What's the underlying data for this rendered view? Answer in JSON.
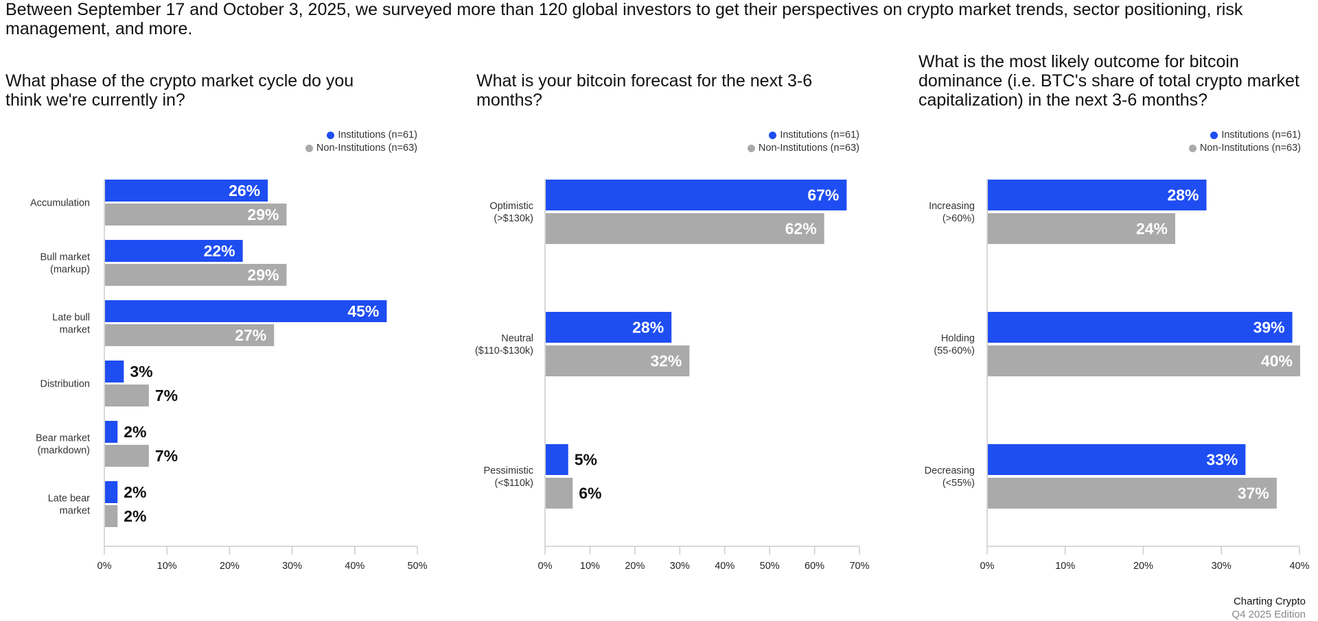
{
  "intro": "Between September 17 and October 3, 2025, we surveyed more than 120 global investors to get their perspectives on crypto market trends, sector positioning, risk management, and more.",
  "colors": {
    "institutions": "#1e4df2",
    "non_institutions": "#aaaaaa",
    "axis": "#cccccc"
  },
  "footer": {
    "title": "Charting Crypto",
    "edition": "Q4 2025 Edition"
  },
  "chart_data": [
    {
      "type": "bar",
      "orientation": "horizontal",
      "title": "What phase of the crypto market cycle do you think we're currently in?",
      "categories": [
        "Accumulation",
        "Bull market\n(markup)",
        "Late bull\nmarket",
        "Distribution",
        "Bear market\n(markdown)",
        "Late bear\nmarket"
      ],
      "series": [
        {
          "name": "Institutions (n=61)",
          "values": [
            26,
            22,
            45,
            3,
            2,
            2
          ]
        },
        {
          "name": "Non-Institutions (n=63)",
          "values": [
            29,
            29,
            27,
            7,
            7,
            2
          ]
        }
      ],
      "xlim": [
        0,
        50
      ],
      "xticks": [
        "0%",
        "10%",
        "20%",
        "30%",
        "40%",
        "50%"
      ],
      "legend": "top-right",
      "grid": false
    },
    {
      "type": "bar",
      "orientation": "horizontal",
      "title": "What is your bitcoin forecast for the next 3-6 months?",
      "categories": [
        "Optimistic\n(>$130k)",
        "Neutral\n($110-$130k)",
        "Pessimistic\n(<$110k)"
      ],
      "series": [
        {
          "name": "Institutions (n=61)",
          "values": [
            67,
            28,
            5
          ]
        },
        {
          "name": "Non-Institutions (n=63)",
          "values": [
            62,
            32,
            6
          ]
        }
      ],
      "xlim": [
        0,
        70
      ],
      "xticks": [
        "0%",
        "10%",
        "20%",
        "30%",
        "40%",
        "50%",
        "60%",
        "70%"
      ],
      "legend": "top-right",
      "grid": false
    },
    {
      "type": "bar",
      "orientation": "horizontal",
      "title": "What is the most likely outcome for bitcoin dominance (i.e. BTC's share of total crypto market capitalization) in the next 3-6 months?",
      "categories": [
        "Increasing\n(>60%)",
        "Holding\n(55-60%)",
        "Decreasing\n(<55%)"
      ],
      "series": [
        {
          "name": "Institutions (n=61)",
          "values": [
            28,
            39,
            33
          ]
        },
        {
          "name": "Non-Institutions (n=63)",
          "values": [
            24,
            40,
            37
          ]
        }
      ],
      "xlim": [
        0,
        40
      ],
      "xticks": [
        "0%",
        "10%",
        "20%",
        "30%",
        "40%"
      ],
      "legend": "top-right",
      "grid": false
    }
  ]
}
